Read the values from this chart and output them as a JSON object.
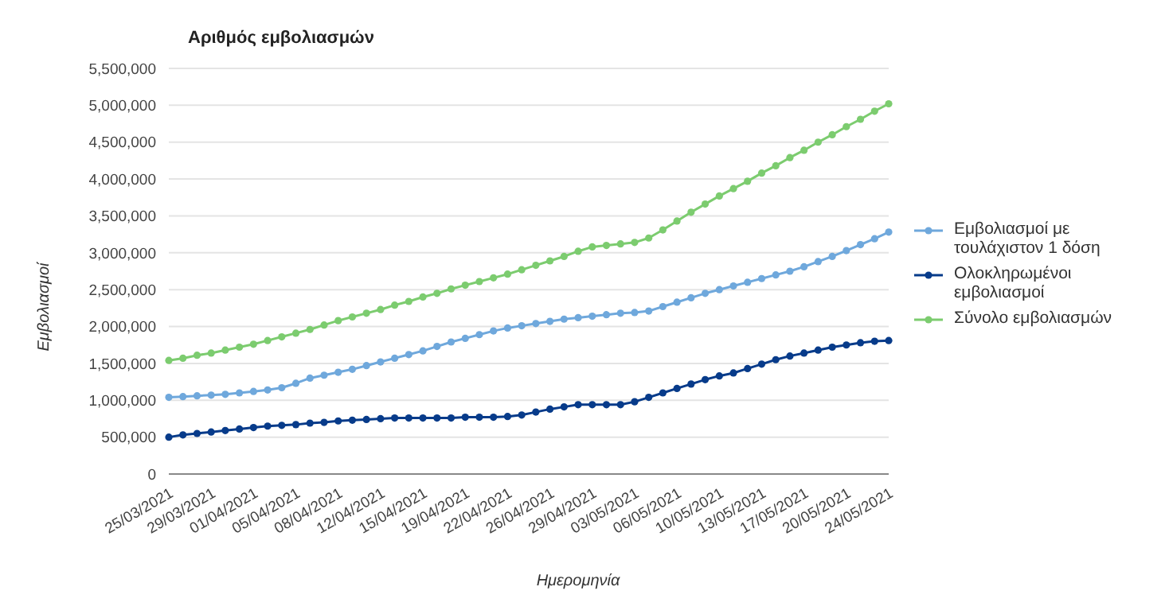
{
  "chart_data": {
    "type": "line",
    "title": "Αριθμός εμβολιασμών",
    "xlabel": "Ημερομηνία",
    "ylabel": "Εμβολιασμοί",
    "categories": [
      "25/03/2021",
      null,
      null,
      "29/03/2021",
      null,
      null,
      "01/04/2021",
      null,
      null,
      "05/04/2021",
      null,
      null,
      "08/04/2021",
      null,
      null,
      "12/04/2021",
      null,
      null,
      "15/04/2021",
      null,
      null,
      "19/04/2021",
      null,
      null,
      "22/04/2021",
      null,
      null,
      "26/04/2021",
      null,
      null,
      "29/04/2021",
      null,
      null,
      "03/05/2021",
      null,
      null,
      "06/05/2021",
      null,
      null,
      "10/05/2021",
      null,
      null,
      "13/05/2021",
      null,
      null,
      "17/05/2021",
      null,
      null,
      "20/05/2021",
      null,
      null,
      "24/05/2021"
    ],
    "series": [
      {
        "name": "Εμβολιασμοί με τουλάχιστον 1 δόση",
        "color": "#6fa8dc",
        "values": [
          1040000,
          1050000,
          1060000,
          1070000,
          1080000,
          1100000,
          1120000,
          1140000,
          1170000,
          1230000,
          1300000,
          1340000,
          1380000,
          1420000,
          1470000,
          1520000,
          1570000,
          1620000,
          1670000,
          1730000,
          1790000,
          1840000,
          1890000,
          1940000,
          1980000,
          2010000,
          2040000,
          2070000,
          2100000,
          2120000,
          2140000,
          2160000,
          2180000,
          2190000,
          2210000,
          2270000,
          2330000,
          2390000,
          2450000,
          2500000,
          2550000,
          2600000,
          2650000,
          2700000,
          2750000,
          2810000,
          2880000,
          2950000,
          3030000,
          3110000,
          3190000,
          3280000
        ]
      },
      {
        "name": "Ολοκληρωμένοι εμβολιασμοί",
        "color": "#073b8a",
        "values": [
          500000,
          530000,
          550000,
          570000,
          590000,
          610000,
          630000,
          650000,
          660000,
          670000,
          690000,
          700000,
          720000,
          730000,
          740000,
          750000,
          760000,
          760000,
          760000,
          760000,
          760000,
          770000,
          770000,
          770000,
          780000,
          800000,
          840000,
          880000,
          910000,
          940000,
          940000,
          940000,
          940000,
          980000,
          1040000,
          1100000,
          1160000,
          1220000,
          1280000,
          1330000,
          1370000,
          1430000,
          1490000,
          1550000,
          1600000,
          1640000,
          1680000,
          1720000,
          1750000,
          1780000,
          1800000,
          1810000
        ]
      },
      {
        "name": "Σύνολο εμβολιασμών",
        "color": "#7ccc6f",
        "values": [
          1540000,
          1570000,
          1610000,
          1640000,
          1680000,
          1720000,
          1760000,
          1810000,
          1860000,
          1910000,
          1960000,
          2020000,
          2080000,
          2130000,
          2180000,
          2230000,
          2290000,
          2340000,
          2400000,
          2450000,
          2510000,
          2560000,
          2610000,
          2660000,
          2710000,
          2770000,
          2830000,
          2890000,
          2950000,
          3020000,
          3080000,
          3100000,
          3120000,
          3140000,
          3200000,
          3310000,
          3430000,
          3550000,
          3660000,
          3770000,
          3870000,
          3970000,
          4080000,
          4180000,
          4290000,
          4390000,
          4500000,
          4600000,
          4710000,
          4810000,
          4920000,
          5020000
        ]
      }
    ],
    "ylim": [
      0,
      5500000
    ],
    "yticks": [
      0,
      {
        "value": 500000,
        "label": "500,000"
      },
      {
        "value": 1000000,
        "label": "1,000,000"
      },
      {
        "value": 1500000,
        "label": "1,500,000"
      },
      {
        "value": 2000000,
        "label": "2,000,000"
      },
      {
        "value": 2500000,
        "label": "2,500,000"
      },
      {
        "value": 3000000,
        "label": "3,000,000"
      },
      {
        "value": 3500000,
        "label": "3,500,000"
      },
      {
        "value": 4000000,
        "label": "4,000,000"
      },
      {
        "value": 4500000,
        "label": "4,500,000"
      },
      {
        "value": 5000000,
        "label": "5,000,000"
      },
      {
        "value": 5500000,
        "label": "5,500,000"
      }
    ],
    "grid": "y",
    "legend": "right",
    "marker": "circle",
    "line_style": "solid"
  }
}
